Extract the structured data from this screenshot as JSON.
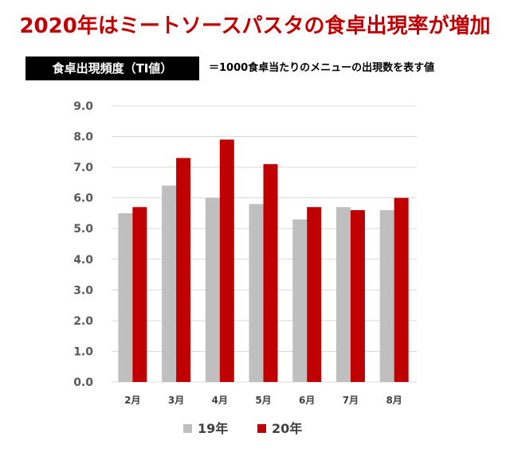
{
  "header": {
    "title": "2020年はミートソースパスタの食卓出現率が増加",
    "badge_label": "食卓出現頻度（TI値）",
    "note": "＝1000食卓当たりのメニューの出現数を表す値"
  },
  "colors": {
    "title": "#c00000",
    "series_19": "#bfbfbf",
    "series_20": "#c00000",
    "gridline": "#d9d9d9"
  },
  "chart_data": {
    "type": "bar",
    "title": "",
    "xlabel": "",
    "ylabel": "",
    "categories": [
      "2月",
      "3月",
      "4月",
      "5月",
      "6月",
      "7月",
      "8月"
    ],
    "series": [
      {
        "name": "19年",
        "values": [
          5.5,
          6.4,
          6.0,
          5.8,
          5.3,
          5.7,
          5.6
        ]
      },
      {
        "name": "20年",
        "values": [
          5.7,
          7.3,
          7.9,
          7.1,
          5.7,
          5.6,
          6.0
        ]
      }
    ],
    "ylim": [
      0,
      9
    ],
    "yticks": [
      "0.0",
      "1.0",
      "2.0",
      "3.0",
      "4.0",
      "5.0",
      "6.0",
      "7.0",
      "8.0",
      "9.0"
    ],
    "grid": true,
    "legend": "bottom-center"
  }
}
